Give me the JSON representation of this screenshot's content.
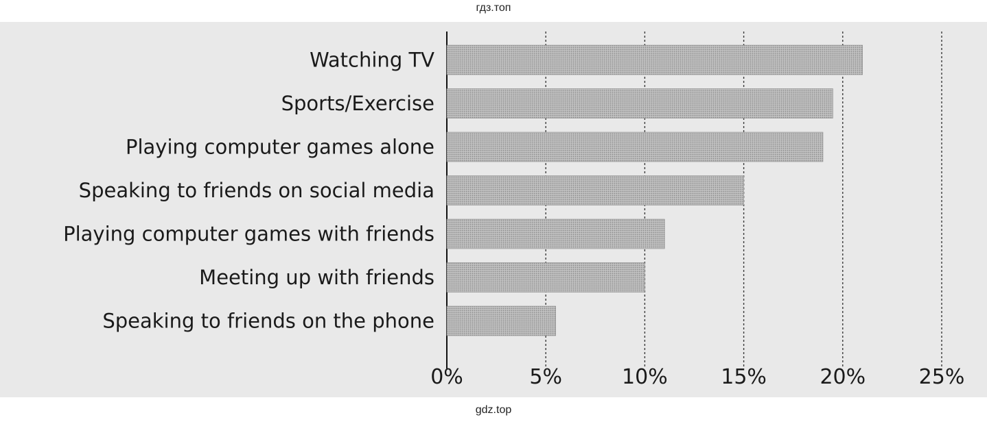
{
  "watermark_top": "гдз.топ",
  "watermark_bottom": "gdz.top",
  "chart_data": {
    "type": "bar",
    "orientation": "horizontal",
    "categories": [
      "Watching TV",
      "Sports/Exercise",
      "Playing computer games alone",
      "Speaking to friends on social media",
      "Playing computer games with friends",
      "Meeting up with friends",
      "Speaking to friends on the phone"
    ],
    "values": [
      21,
      19.5,
      19,
      15,
      11,
      10,
      5.5
    ],
    "xlim": [
      0,
      25
    ],
    "ticks": [
      0,
      5,
      10,
      15,
      20,
      25
    ],
    "tick_labels": [
      "0%",
      "5%",
      "10%",
      "15%",
      "20%",
      "25%"
    ],
    "grid": true,
    "bar_color": "#b3b3b3",
    "background_color": "#e9e9e9"
  }
}
